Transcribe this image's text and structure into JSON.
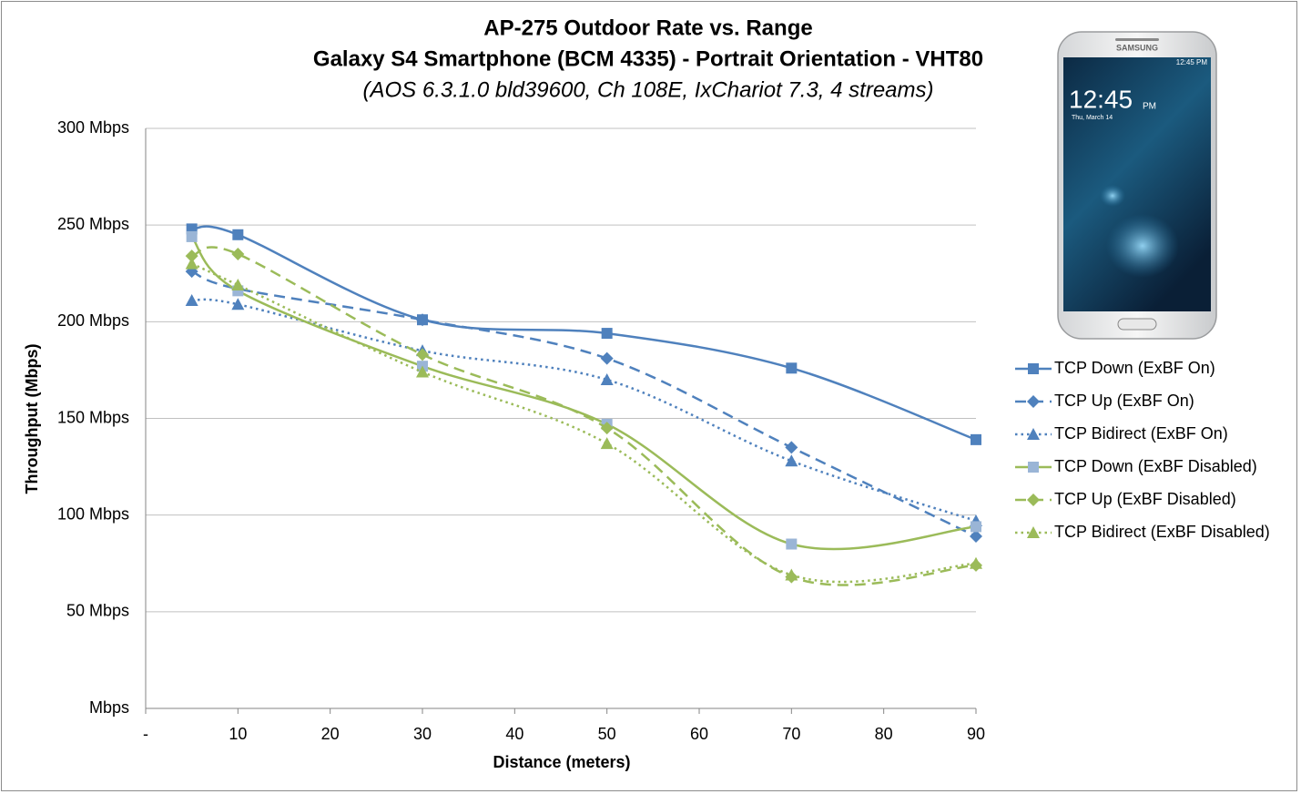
{
  "chart_data": {
    "type": "line",
    "title": "AP-275 Outdoor Rate vs. Range",
    "subtitle": "Galaxy S4 Smartphone (BCM 4335) - Portrait Orientation - VHT80",
    "annotations": [
      "(AOS 6.3.1.0 bld39600, Ch 108E, IxChariot 7.3, 4 streams)"
    ],
    "x_label": "Distance (meters)",
    "y_label": "Throughput (Mbps)",
    "x": [
      5,
      10,
      30,
      50,
      70,
      90
    ],
    "xlim": [
      0,
      90
    ],
    "xticks": [
      {
        "value": 0,
        "label": "-"
      },
      10,
      20,
      30,
      40,
      50,
      60,
      70,
      80,
      90
    ],
    "ylim": [
      0,
      300
    ],
    "yticks": [
      {
        "value": 0,
        "label": "Mbps"
      },
      {
        "value": 50,
        "label": "50 Mbps"
      },
      {
        "value": 100,
        "label": "100 Mbps"
      },
      {
        "value": 150,
        "label": "150 Mbps"
      },
      {
        "value": 200,
        "label": "200 Mbps"
      },
      {
        "value": 250,
        "label": "250 Mbps"
      },
      {
        "value": 300,
        "label": "300 Mbps"
      }
    ],
    "grid": true,
    "legend": "right",
    "smooth": true,
    "series": [
      {
        "name": "TCP Down (ExBF On)",
        "color": "#4f81bd",
        "dash": "solid",
        "marker": "square",
        "values": [
          248,
          245,
          201,
          194,
          176,
          139
        ]
      },
      {
        "name": "TCP Up (ExBF On)",
        "color": "#4f81bd",
        "dash": "dashed",
        "marker": "diamond",
        "values": [
          226,
          217,
          201,
          181,
          135,
          89
        ]
      },
      {
        "name": "TCP Bidirect (ExBF On)",
        "color": "#4f81bd",
        "dash": "dotted",
        "marker": "triangle",
        "values": [
          211,
          209,
          185,
          170,
          128,
          97
        ]
      },
      {
        "name": "TCP Down (ExBF Disabled)",
        "color": "#9bbb59",
        "marker_color": "#9ab5d6",
        "dash": "solid",
        "marker": "square",
        "values": [
          244,
          216,
          177,
          147,
          85,
          94
        ]
      },
      {
        "name": "TCP Up (ExBF Disabled)",
        "color": "#9bbb59",
        "dash": "dashed",
        "marker": "diamond",
        "values": [
          234,
          235,
          183,
          145,
          68,
          74
        ]
      },
      {
        "name": "TCP Bidirect (ExBF Disabled)",
        "color": "#9bbb59",
        "dash": "dotted",
        "marker": "triangle",
        "values": [
          230,
          219,
          174,
          137,
          69,
          75
        ]
      }
    ]
  },
  "phone_image": {
    "brand": "SAMSUNG",
    "status_time": "12:45 PM",
    "time": "12:45",
    "ampm": "PM",
    "date": "Thu, March 14"
  }
}
